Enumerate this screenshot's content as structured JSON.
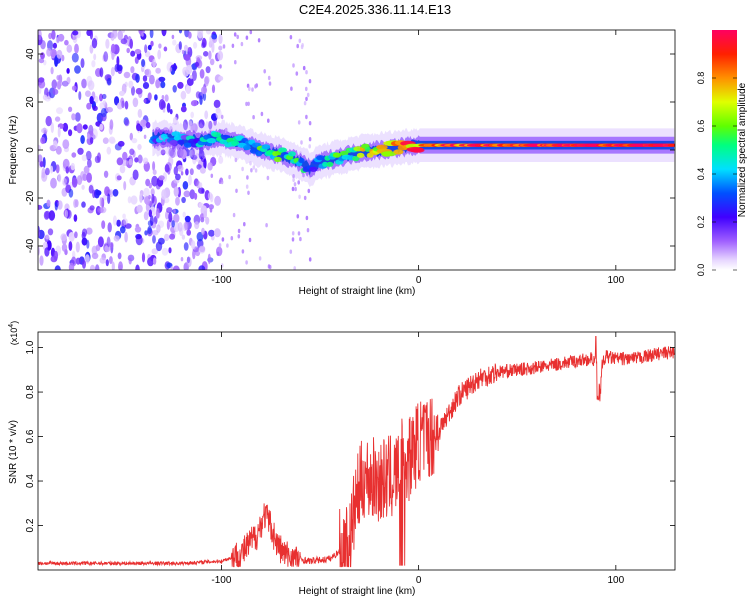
{
  "title": "C2E4.2025.336.11.14.E13",
  "chart_data": [
    {
      "type": "heatmap",
      "name": "spectrogram",
      "xlabel": "Height of straight line (km)",
      "ylabel": "Frequency (Hz)",
      "xlim": [
        -193,
        130
      ],
      "ylim": [
        -50,
        50
      ],
      "xticks": [
        -100,
        0,
        100
      ],
      "yticks": [
        -40,
        -20,
        0,
        20,
        40
      ],
      "colorbar": {
        "label": "Normalized spectral amplitude",
        "range": [
          0,
          1
        ],
        "ticks": [
          0.0,
          0.2,
          0.4,
          0.6,
          0.8
        ]
      },
      "noise_region_x": [
        -193,
        -100
      ],
      "ridge": [
        {
          "x": -130,
          "f": 5,
          "a": 0.25
        },
        {
          "x": -120,
          "f": 4,
          "a": 0.3
        },
        {
          "x": -110,
          "f": 4,
          "a": 0.35
        },
        {
          "x": -100,
          "f": 5,
          "a": 0.4
        },
        {
          "x": -90,
          "f": 3,
          "a": 0.45
        },
        {
          "x": -80,
          "f": 0,
          "a": 0.45
        },
        {
          "x": -70,
          "f": -2,
          "a": 0.45
        },
        {
          "x": -60,
          "f": -5,
          "a": 0.4
        },
        {
          "x": -55,
          "f": -8,
          "a": 0.35
        },
        {
          "x": -50,
          "f": -5,
          "a": 0.4
        },
        {
          "x": -40,
          "f": -3,
          "a": 0.5
        },
        {
          "x": -30,
          "f": -1,
          "a": 0.6
        },
        {
          "x": -20,
          "f": 0,
          "a": 0.75
        },
        {
          "x": -10,
          "f": 1,
          "a": 0.8
        },
        {
          "x": 0,
          "f": 2,
          "a": 0.85
        },
        {
          "x": 20,
          "f": 2,
          "a": 0.9
        },
        {
          "x": 60,
          "f": 2,
          "a": 0.95
        },
        {
          "x": 90,
          "f": 2,
          "a": 0.97
        },
        {
          "x": 130,
          "f": 2,
          "a": 1.0
        }
      ]
    },
    {
      "type": "line",
      "name": "snr",
      "xlabel": "Height of straight line (km)",
      "ylabel": "SNR (10 * v/v)",
      "y_multiplier": "(x10",
      "y_multiplier_exp": "4",
      "y_multiplier_close": ")",
      "xlim": [
        -193,
        130
      ],
      "ylim": [
        0,
        1.07
      ],
      "xticks": [
        -100,
        0,
        100
      ],
      "yticks": [
        0.2,
        0.4,
        0.6,
        0.8,
        1.0
      ],
      "color": "#e83030",
      "series": {
        "name": "SNR",
        "x": [
          -193,
          -150,
          -120,
          -100,
          -90,
          -82,
          -78,
          -75,
          -72,
          -68,
          -62,
          -55,
          -45,
          -35,
          -32,
          -28,
          -20,
          -12,
          -8,
          -5,
          0,
          10,
          20,
          30,
          40,
          60,
          80,
          88,
          91,
          92,
          93,
          95,
          100,
          110,
          120,
          130
        ],
        "y": [
          0.03,
          0.03,
          0.03,
          0.04,
          0.07,
          0.16,
          0.25,
          0.2,
          0.12,
          0.07,
          0.05,
          0.04,
          0.05,
          0.12,
          0.3,
          0.42,
          0.4,
          0.42,
          0.5,
          0.5,
          0.58,
          0.62,
          0.78,
          0.86,
          0.89,
          0.91,
          0.94,
          0.95,
          0.92,
          0.78,
          0.92,
          0.96,
          0.95,
          0.95,
          0.97,
          0.98
        ]
      }
    }
  ]
}
